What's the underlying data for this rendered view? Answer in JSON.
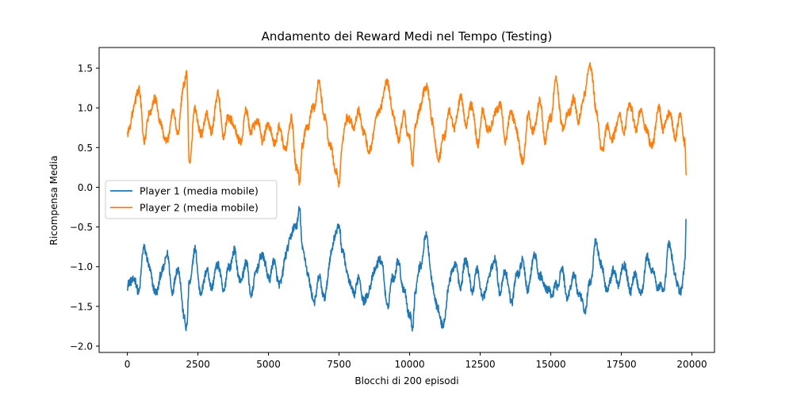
{
  "chart_data": {
    "type": "line",
    "title": "Andamento dei Reward Medi nel Tempo (Testing)",
    "xlabel": "Blocchi di 200 episodi",
    "ylabel": "Ricompensa Media",
    "xlim": [
      -1000,
      20800
    ],
    "ylim": [
      -2.08,
      1.76
    ],
    "xticks": [
      0,
      2500,
      5000,
      7500,
      10000,
      12500,
      15000,
      17500,
      20000
    ],
    "xtick_labels": [
      "0",
      "2500",
      "5000",
      "7500",
      "10000",
      "12500",
      "15000",
      "17500",
      "20000"
    ],
    "yticks": [
      -2.0,
      -1.5,
      -1.0,
      -0.5,
      0.0,
      0.5,
      1.0,
      1.5
    ],
    "ytick_labels": [
      "−2.0",
      "−1.5",
      "−1.0",
      "−0.5",
      "0.0",
      "0.5",
      "1.0",
      "1.5"
    ],
    "grid": false,
    "legend_position": "center-left",
    "series": [
      {
        "name": "Player 1 (media mobile)",
        "color": "#1f77b4",
        "x": [
          0,
          200,
          400,
          600,
          800,
          1000,
          1200,
          1400,
          1600,
          1800,
          2000,
          2100,
          2200,
          2400,
          2600,
          2800,
          3000,
          3200,
          3400,
          3600,
          3800,
          4000,
          4200,
          4400,
          4600,
          4800,
          5000,
          5200,
          5400,
          5600,
          5800,
          6000,
          6100,
          6200,
          6400,
          6600,
          6800,
          7000,
          7200,
          7400,
          7500,
          7600,
          7800,
          8000,
          8200,
          8400,
          8600,
          8800,
          9000,
          9200,
          9400,
          9600,
          9800,
          10000,
          10100,
          10200,
          10400,
          10600,
          10800,
          11000,
          11200,
          11400,
          11600,
          11800,
          12000,
          12200,
          12400,
          12600,
          12800,
          13000,
          13200,
          13400,
          13600,
          13800,
          14000,
          14200,
          14400,
          14600,
          14800,
          15000,
          15200,
          15400,
          15600,
          15800,
          16000,
          16200,
          16400,
          16600,
          16800,
          17000,
          17200,
          17400,
          17600,
          17800,
          18000,
          18200,
          18400,
          18600,
          18800,
          19000,
          19200,
          19400,
          19600,
          19750,
          19800
        ],
        "values": [
          -1.25,
          -1.15,
          -1.3,
          -0.75,
          -1.05,
          -1.35,
          -1.1,
          -0.85,
          -1.3,
          -1.0,
          -1.6,
          -1.78,
          -1.2,
          -0.8,
          -1.35,
          -1.05,
          -1.25,
          -0.95,
          -1.3,
          -1.0,
          -0.82,
          -1.2,
          -0.95,
          -1.35,
          -1.0,
          -0.85,
          -1.15,
          -0.95,
          -1.25,
          -0.88,
          -0.6,
          -0.45,
          -0.3,
          -0.75,
          -1.1,
          -1.45,
          -1.15,
          -1.4,
          -0.85,
          -0.55,
          -0.5,
          -0.75,
          -1.1,
          -1.35,
          -1.15,
          -1.45,
          -1.25,
          -1.0,
          -0.9,
          -1.5,
          -1.15,
          -0.95,
          -1.3,
          -1.6,
          -1.78,
          -1.3,
          -0.95,
          -0.6,
          -1.2,
          -1.55,
          -1.75,
          -1.2,
          -0.95,
          -1.25,
          -0.9,
          -1.3,
          -1.05,
          -1.4,
          -1.15,
          -0.9,
          -1.3,
          -1.05,
          -1.45,
          -1.1,
          -0.95,
          -1.3,
          -0.85,
          -1.1,
          -1.25,
          -1.35,
          -1.25,
          -1.05,
          -1.4,
          -1.1,
          -1.35,
          -1.55,
          -1.2,
          -0.7,
          -1.0,
          -1.3,
          -1.05,
          -1.2,
          -0.95,
          -1.3,
          -1.1,
          -1.35,
          -0.9,
          -1.05,
          -1.25,
          -1.3,
          -0.7,
          -1.1,
          -1.35,
          -0.95,
          -0.4
        ],
        "mirror_note": "p1"
      },
      {
        "name": "Player 2 (media mobile)",
        "color": "#ff7f0e",
        "x": [
          0,
          200,
          400,
          600,
          800,
          1000,
          1200,
          1400,
          1600,
          1800,
          2000,
          2100,
          2200,
          2400,
          2600,
          2800,
          3000,
          3200,
          3400,
          3600,
          3800,
          4000,
          4200,
          4400,
          4600,
          4800,
          5000,
          5200,
          5400,
          5600,
          5800,
          6000,
          6100,
          6200,
          6400,
          6600,
          6800,
          7000,
          7200,
          7400,
          7500,
          7600,
          7800,
          8000,
          8200,
          8400,
          8600,
          8800,
          9000,
          9200,
          9400,
          9600,
          9800,
          10000,
          10100,
          10200,
          10400,
          10600,
          10800,
          11000,
          11200,
          11400,
          11600,
          11800,
          12000,
          12200,
          12400,
          12600,
          12800,
          13000,
          13200,
          13400,
          13600,
          13800,
          14000,
          14200,
          14400,
          14600,
          14800,
          15000,
          15200,
          15400,
          15600,
          15800,
          16000,
          16200,
          16400,
          16600,
          16800,
          17000,
          17200,
          17400,
          17600,
          17800,
          18000,
          18200,
          18400,
          18600,
          18800,
          19000,
          19200,
          19400,
          19600,
          19750,
          19800
        ],
        "values": [
          0.65,
          0.95,
          1.25,
          0.6,
          0.95,
          1.1,
          0.75,
          0.55,
          0.95,
          0.7,
          1.3,
          1.4,
          0.3,
          1.0,
          0.65,
          0.9,
          0.7,
          1.2,
          0.65,
          0.9,
          0.75,
          0.55,
          0.95,
          0.7,
          0.85,
          0.6,
          0.8,
          0.55,
          0.75,
          0.45,
          0.85,
          0.25,
          0.05,
          0.55,
          0.8,
          1.0,
          1.3,
          0.85,
          0.5,
          0.2,
          0.0,
          0.55,
          0.9,
          0.75,
          0.95,
          0.65,
          0.45,
          0.85,
          1.05,
          1.35,
          0.95,
          0.6,
          0.9,
          0.6,
          0.3,
          0.75,
          1.05,
          1.3,
          0.85,
          0.35,
          0.6,
          0.95,
          0.75,
          1.15,
          0.8,
          1.05,
          0.55,
          0.95,
          0.7,
          0.9,
          1.05,
          0.6,
          0.95,
          0.7,
          0.3,
          0.9,
          0.7,
          1.1,
          0.6,
          0.9,
          1.35,
          0.75,
          0.9,
          1.1,
          0.85,
          1.2,
          1.55,
          1.0,
          0.45,
          0.75,
          0.6,
          0.9,
          0.7,
          1.05,
          0.75,
          0.95,
          0.7,
          0.5,
          1.0,
          0.75,
          0.95,
          0.65,
          0.9,
          0.55,
          0.15
        ],
        "mirror_note": "p2"
      }
    ]
  }
}
